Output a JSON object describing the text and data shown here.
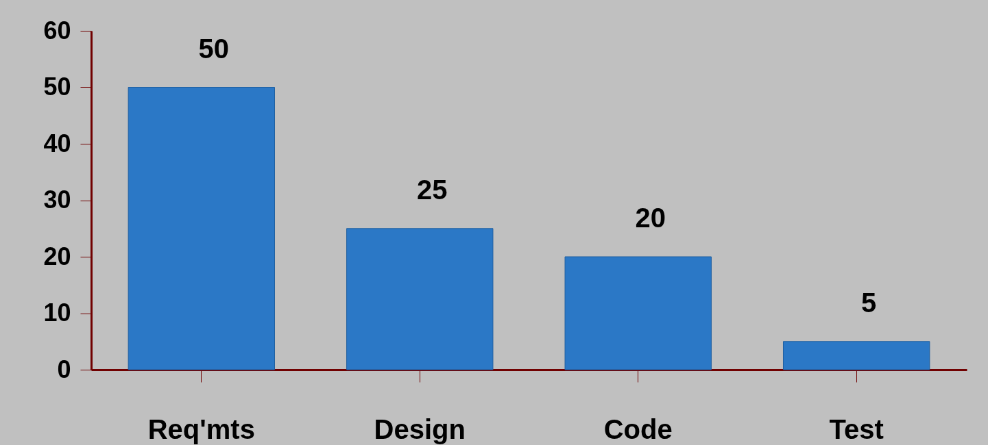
{
  "chart_data": {
    "type": "bar",
    "categories": [
      "Req'mts",
      "Design",
      "Code",
      "Test"
    ],
    "values": [
      50,
      25,
      20,
      5
    ],
    "color": "#2b78c6",
    "ylim": [
      0,
      60
    ],
    "yticks": [
      0,
      10,
      20,
      30,
      40,
      50,
      60
    ],
    "grid": false,
    "data_labels": true
  }
}
